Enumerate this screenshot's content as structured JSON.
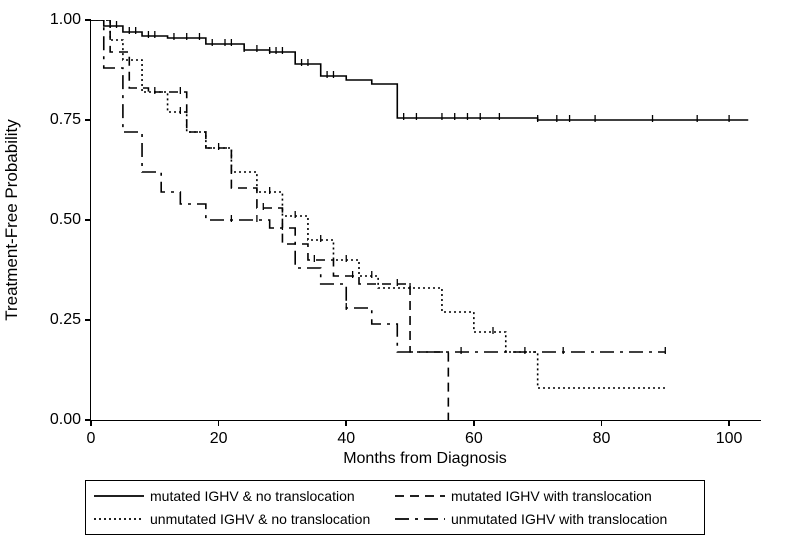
{
  "chart": {
    "type": "kaplan-meier",
    "background_color": "#ffffff",
    "line_color": "#000000",
    "ylabel": "Treatment-Free Probability",
    "xlabel": "Months from Diagnosis",
    "xlim": [
      0,
      105
    ],
    "ylim": [
      0,
      1.0
    ],
    "yticks": [
      0.0,
      0.25,
      0.5,
      0.75,
      1.0
    ],
    "ytick_labels": [
      "0.00",
      "0.25",
      "0.50",
      "0.75",
      "1.00"
    ],
    "xticks": [
      0,
      20,
      40,
      60,
      80,
      100
    ],
    "xtick_labels": [
      "0",
      "20",
      "40",
      "60",
      "80",
      "100"
    ],
    "label_fontsize": 17,
    "tick_fontsize": 16,
    "series": [
      {
        "name": "mutated IGHV & no translocation",
        "dash": "solid",
        "points": [
          [
            0,
            1.0
          ],
          [
            2,
            0.985
          ],
          [
            5,
            0.97
          ],
          [
            8,
            0.96
          ],
          [
            12,
            0.955
          ],
          [
            18,
            0.94
          ],
          [
            24,
            0.925
          ],
          [
            28,
            0.92
          ],
          [
            32,
            0.89
          ],
          [
            36,
            0.86
          ],
          [
            40,
            0.85
          ],
          [
            44,
            0.84
          ],
          [
            48,
            0.755
          ],
          [
            55,
            0.755
          ],
          [
            70,
            0.75
          ],
          [
            90,
            0.75
          ],
          [
            103,
            0.75
          ]
        ],
        "censor_marks": [
          3,
          4,
          6,
          7,
          9,
          10,
          13,
          15,
          17,
          19,
          21,
          22,
          24,
          26,
          28,
          29,
          30,
          33,
          34,
          37,
          38,
          49,
          51,
          55,
          57,
          59,
          61,
          64,
          70,
          73,
          75,
          79,
          88,
          95,
          100
        ]
      },
      {
        "name": "unmutated IGHV & no translocation",
        "dash": "dot",
        "points": [
          [
            0,
            1.0
          ],
          [
            3,
            0.95
          ],
          [
            5,
            0.9
          ],
          [
            8,
            0.82
          ],
          [
            12,
            0.77
          ],
          [
            15,
            0.72
          ],
          [
            18,
            0.68
          ],
          [
            22,
            0.62
          ],
          [
            26,
            0.57
          ],
          [
            30,
            0.51
          ],
          [
            34,
            0.45
          ],
          [
            38,
            0.4
          ],
          [
            42,
            0.36
          ],
          [
            45,
            0.33
          ],
          [
            50,
            0.33
          ],
          [
            55,
            0.27
          ],
          [
            60,
            0.22
          ],
          [
            65,
            0.17
          ],
          [
            70,
            0.08
          ],
          [
            90,
            0.08
          ]
        ],
        "censor_marks": [
          10,
          14,
          22,
          28,
          32,
          36,
          40,
          44,
          50,
          63,
          68
        ]
      },
      {
        "name": "mutated IGHV with translocation",
        "dash": "dash",
        "points": [
          [
            0,
            1.0
          ],
          [
            3,
            0.92
          ],
          [
            6,
            0.83
          ],
          [
            9,
            0.82
          ],
          [
            12,
            0.82
          ],
          [
            15,
            0.72
          ],
          [
            18,
            0.68
          ],
          [
            22,
            0.58
          ],
          [
            26,
            0.53
          ],
          [
            30,
            0.44
          ],
          [
            34,
            0.4
          ],
          [
            38,
            0.36
          ],
          [
            42,
            0.34
          ],
          [
            46,
            0.34
          ],
          [
            50,
            0.17
          ],
          [
            55,
            0.17
          ],
          [
            56,
            0.0
          ]
        ],
        "censor_marks": [
          14,
          20,
          27,
          35,
          41,
          48
        ]
      },
      {
        "name": "unmutated IGHV with translocation",
        "dash": "longdash-dot",
        "points": [
          [
            0,
            1.0
          ],
          [
            2,
            0.88
          ],
          [
            5,
            0.72
          ],
          [
            8,
            0.62
          ],
          [
            11,
            0.57
          ],
          [
            14,
            0.54
          ],
          [
            18,
            0.5
          ],
          [
            24,
            0.5
          ],
          [
            28,
            0.48
          ],
          [
            32,
            0.38
          ],
          [
            36,
            0.34
          ],
          [
            40,
            0.28
          ],
          [
            44,
            0.24
          ],
          [
            48,
            0.17
          ],
          [
            58,
            0.17
          ],
          [
            74,
            0.17
          ],
          [
            90,
            0.17
          ]
        ],
        "censor_marks": [
          22,
          26,
          30,
          40,
          58,
          74,
          90
        ]
      }
    ],
    "legend": {
      "items": [
        {
          "dash": "solid",
          "label": "mutated IGHV & no translocation"
        },
        {
          "dash": "dash",
          "label": "mutated IGHV with translocation"
        },
        {
          "dash": "dot",
          "label": "unmutated IGHV & no translocation"
        },
        {
          "dash": "longdash-dot",
          "label": "unmutated IGHV with translocation"
        }
      ]
    }
  }
}
